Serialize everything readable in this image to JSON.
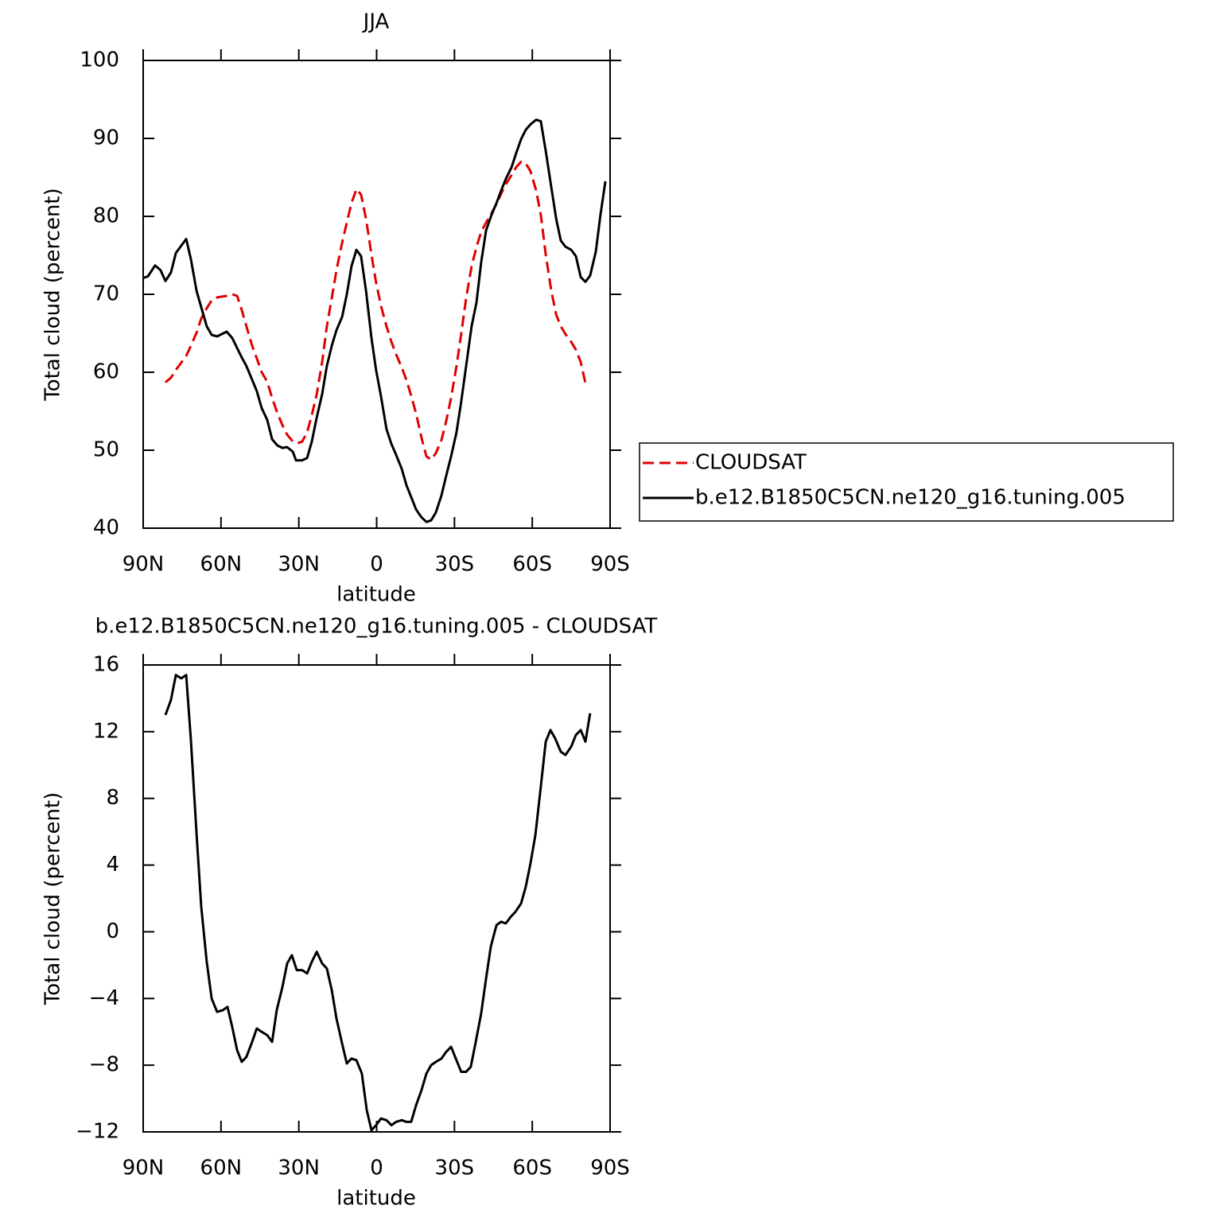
{
  "chart_data": [
    {
      "type": "line",
      "title": "JJA",
      "xlabel": "latitude",
      "ylabel": "Total cloud (percent)",
      "xlim": [
        90,
        -90
      ],
      "xticks": [
        {
          "value": 90,
          "label": "90N"
        },
        {
          "value": 60,
          "label": "60N"
        },
        {
          "value": 30,
          "label": "30N"
        },
        0,
        {
          "value": -30,
          "label": "30S"
        },
        {
          "value": -60,
          "label": "60S"
        },
        {
          "value": -90,
          "label": "90S"
        }
      ],
      "ylim": [
        40,
        100
      ],
      "yticks": [
        40,
        50,
        60,
        70,
        80,
        90,
        100
      ],
      "legend": "right",
      "series": [
        {
          "name": "CLOUDSAT",
          "color": "#e00000",
          "linestyle": "dashed",
          "x": [
            81.4,
            79.3,
            77.4,
            73.4,
            71.6,
            69.4,
            67.6,
            65.5,
            63.6,
            61.5,
            57.8,
            55.7,
            53.8,
            52.0,
            50.2,
            48.0,
            46.2,
            44.3,
            42.2,
            40.3,
            38.2,
            36.3,
            34.5,
            32.3,
            30.5,
            28.7,
            26.8,
            25.0,
            23.1,
            21.0,
            19.2,
            17.3,
            15.5,
            13.3,
            11.5,
            9.7,
            7.8,
            6.0,
            4.1,
            2.0,
            0.2,
            -1.7,
            -3.8,
            -5.7,
            -7.5,
            -9.7,
            -11.5,
            -13.3,
            -15.2,
            -17.3,
            -19.2,
            -21.0,
            -22.8,
            -25.0,
            -26.8,
            -28.7,
            -30.8,
            -32.6,
            -34.5,
            -36.6,
            -38.5,
            -40.3,
            -42.2,
            -44.3,
            -46.2,
            -48.0,
            -49.8,
            -52.0,
            -53.8,
            -55.7,
            -57.5,
            -59.3,
            -61.5,
            -63.3,
            -65.2,
            -67.3,
            -69.2,
            -71.0,
            -72.8,
            -75.0,
            -76.8,
            -78.7,
            -80.5
          ],
          "values": [
            58.7,
            59.3,
            60.3,
            62.1,
            63.4,
            65.1,
            66.9,
            68.2,
            69.2,
            69.6,
            69.8,
            70.0,
            69.8,
            68.0,
            65.9,
            63.4,
            61.8,
            60.0,
            58.8,
            56.7,
            54.7,
            53.2,
            52.0,
            51.1,
            50.9,
            51.1,
            52.3,
            54.5,
            57.2,
            61.3,
            65.9,
            69.5,
            73.1,
            76.6,
            79.2,
            81.7,
            83.5,
            82.8,
            79.7,
            75.1,
            71.5,
            68.5,
            65.9,
            63.9,
            62.3,
            60.6,
            59.0,
            57.0,
            54.7,
            51.6,
            49.2,
            48.8,
            49.6,
            51.3,
            53.7,
            56.7,
            60.8,
            64.9,
            69.5,
            73.6,
            76.1,
            78.0,
            79.2,
            80.4,
            81.6,
            82.9,
            84.1,
            85.3,
            86.3,
            87.0,
            86.8,
            85.8,
            83.3,
            80.2,
            75.1,
            70.5,
            67.4,
            65.9,
            64.9,
            63.9,
            62.9,
            61.3,
            58.6
          ]
        },
        {
          "name": "b.e12.B1850C5CN.ne120_g16.tuning.005",
          "color": "#000000",
          "linestyle": "solid",
          "x": [
            90,
            88.2,
            85.4,
            83.3,
            81.4,
            79.3,
            77.4,
            73.4,
            71.6,
            69.4,
            65.5,
            63.6,
            61.5,
            57.8,
            55.7,
            52.0,
            50.2,
            46.2,
            44.3,
            42.2,
            40.3,
            38.2,
            36.3,
            34.5,
            32.3,
            31.1,
            28.7,
            26.8,
            25.0,
            23.1,
            21.0,
            19.2,
            17.3,
            15.5,
            13.3,
            11.5,
            9.7,
            7.8,
            6.0,
            4.1,
            2.0,
            0.2,
            -1.7,
            -3.8,
            -5.7,
            -7.5,
            -9.7,
            -11.5,
            -13.3,
            -15.2,
            -17.3,
            -19.2,
            -21.0,
            -22.8,
            -25.0,
            -26.8,
            -28.7,
            -30.8,
            -32.6,
            -34.5,
            -36.6,
            -38.5,
            -40.3,
            -42.2,
            -44.3,
            -46.2,
            -48.0,
            -49.8,
            -52.0,
            -53.8,
            -55.7,
            -57.5,
            -59.3,
            -61.5,
            -63.3,
            -65.2,
            -67.3,
            -69.2,
            -71.0,
            -72.8,
            -75.0,
            -76.8,
            -78.7,
            -80.5,
            -82.3,
            -84.5,
            -86.3,
            -88.2
          ],
          "values": [
            72.1,
            72.3,
            73.7,
            73.1,
            71.7,
            72.8,
            75.3,
            77.1,
            74.5,
            70.4,
            65.9,
            64.8,
            64.6,
            65.2,
            64.4,
            61.9,
            60.8,
            57.6,
            55.4,
            53.9,
            51.4,
            50.6,
            50.3,
            50.4,
            49.8,
            48.7,
            48.7,
            49.0,
            51.1,
            54.2,
            57.2,
            60.8,
            63.4,
            65.4,
            67.1,
            70.0,
            73.6,
            75.7,
            74.9,
            70.5,
            64.4,
            60.3,
            56.9,
            52.7,
            50.8,
            49.4,
            47.6,
            45.5,
            44.0,
            42.4,
            41.4,
            40.8,
            41.0,
            42.0,
            44.2,
            46.7,
            49.2,
            52.3,
            56.2,
            60.8,
            65.9,
            69.0,
            74.1,
            78.2,
            80.2,
            81.7,
            83.3,
            84.8,
            86.3,
            88.1,
            89.9,
            91.1,
            91.8,
            92.4,
            92.2,
            88.4,
            83.8,
            79.7,
            76.9,
            76.1,
            75.7,
            74.9,
            72.2,
            71.6,
            72.4,
            75.5,
            80.2,
            84.5
          ]
        }
      ]
    },
    {
      "type": "line",
      "title": "b.e12.B1850C5CN.ne120_g16.tuning.005 - CLOUDSAT",
      "xlabel": "latitude",
      "ylabel": "Total cloud (percent)",
      "xlim": [
        90,
        -90
      ],
      "xticks": [
        {
          "value": 90,
          "label": "90N"
        },
        {
          "value": 60,
          "label": "60N"
        },
        {
          "value": 30,
          "label": "30N"
        },
        0,
        {
          "value": -30,
          "label": "30S"
        },
        {
          "value": -60,
          "label": "60S"
        },
        {
          "value": -90,
          "label": "90S"
        }
      ],
      "ylim": [
        -12,
        16
      ],
      "yticks": [
        {
          "value": -12,
          "label": "−12"
        },
        {
          "value": -8,
          "label": "−8"
        },
        {
          "value": -4,
          "label": "−4"
        },
        0,
        4,
        8,
        12,
        16
      ],
      "series": [
        {
          "color": "#000000",
          "linestyle": "solid",
          "x": [
            81.4,
            79.3,
            77.4,
            75.3,
            73.4,
            71.6,
            69.4,
            67.6,
            65.5,
            63.6,
            61.5,
            59.3,
            57.5,
            55.7,
            53.8,
            52.0,
            50.2,
            48.0,
            46.2,
            44.3,
            42.2,
            40.3,
            38.5,
            36.3,
            34.5,
            32.7,
            30.8,
            28.7,
            26.8,
            25.0,
            23.1,
            21.0,
            19.2,
            17.3,
            15.5,
            13.3,
            11.5,
            9.7,
            7.8,
            5.7,
            3.8,
            2.0,
            0.2,
            -1.7,
            -3.8,
            -5.7,
            -7.5,
            -9.7,
            -11.5,
            -13.3,
            -15.2,
            -17.3,
            -19.2,
            -21.0,
            -22.8,
            -25.0,
            -26.8,
            -28.7,
            -30.8,
            -32.6,
            -34.5,
            -36.3,
            -38.2,
            -40.3,
            -42.2,
            -44.0,
            -46.2,
            -48.0,
            -49.8,
            -51.7,
            -53.5,
            -55.7,
            -57.5,
            -59.3,
            -61.2,
            -63.3,
            -65.2,
            -67.0,
            -68.8,
            -71.0,
            -72.8,
            -75.0,
            -76.8,
            -78.7,
            -80.5,
            -82.3
          ],
          "values": [
            13.0,
            13.9,
            15.4,
            15.2,
            15.4,
            11.5,
            5.8,
            1.5,
            -1.8,
            -4.0,
            -4.8,
            -4.7,
            -4.5,
            -5.7,
            -7.1,
            -7.8,
            -7.5,
            -6.6,
            -5.8,
            -6.0,
            -6.2,
            -6.6,
            -4.7,
            -3.3,
            -1.9,
            -1.4,
            -2.3,
            -2.3,
            -2.5,
            -1.8,
            -1.2,
            -1.9,
            -2.2,
            -3.5,
            -5.2,
            -6.7,
            -7.9,
            -7.6,
            -7.7,
            -8.5,
            -10.7,
            -11.9,
            -11.6,
            -11.2,
            -11.3,
            -11.6,
            -11.4,
            -11.3,
            -11.4,
            -11.4,
            -10.4,
            -9.5,
            -8.5,
            -8.0,
            -7.8,
            -7.6,
            -7.2,
            -6.9,
            -7.7,
            -8.4,
            -8.4,
            -8.1,
            -6.6,
            -4.9,
            -2.8,
            -0.9,
            0.4,
            0.6,
            0.5,
            0.9,
            1.2,
            1.7,
            2.7,
            4.1,
            5.8,
            8.7,
            11.4,
            12.1,
            11.6,
            10.8,
            10.6,
            11.1,
            11.8,
            12.1,
            11.4,
            13.1
          ]
        }
      ]
    }
  ]
}
